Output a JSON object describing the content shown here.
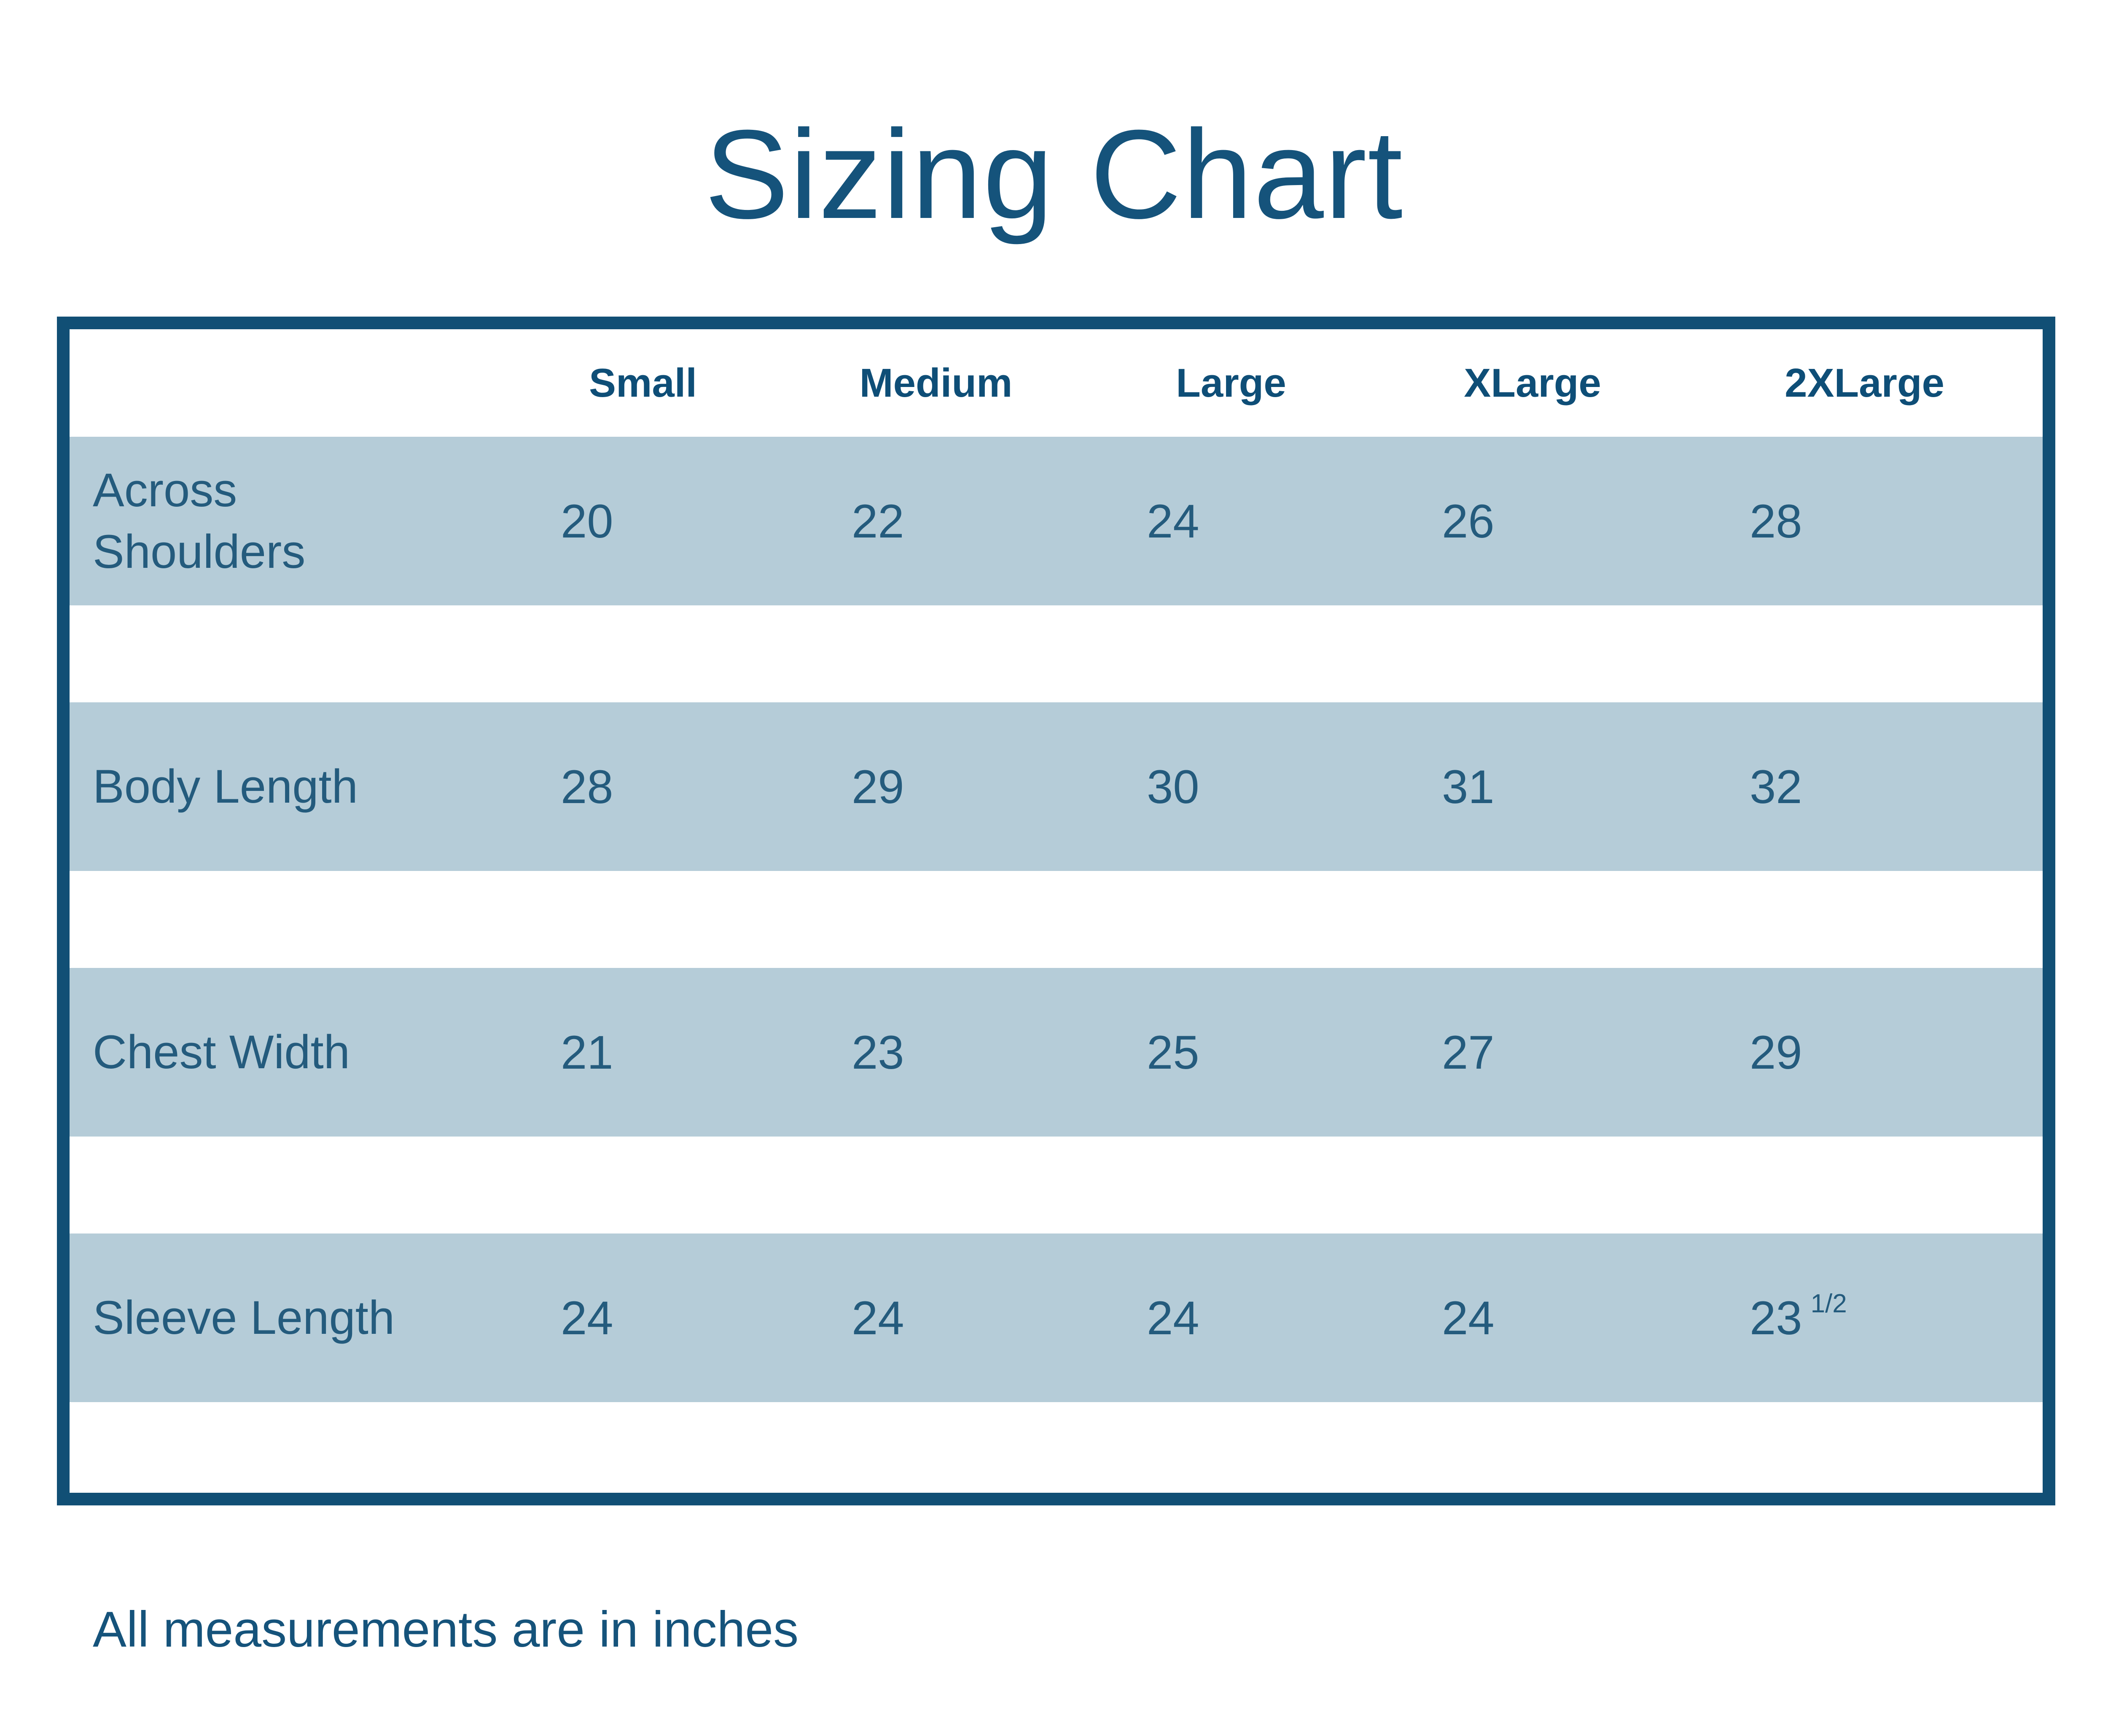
{
  "title": "Sizing Chart",
  "note": "All measurements are in inches",
  "chart_data": {
    "type": "table",
    "title": "Sizing Chart",
    "columns": [
      "Small",
      "Medium",
      "Large",
      "XLarge",
      "2XLarge"
    ],
    "rows": [
      {
        "label": "Across\nShoulders",
        "values": [
          "20",
          "22",
          "24",
          "26",
          "28"
        ]
      },
      {
        "label": "Body Length",
        "values": [
          "28",
          "29",
          "30",
          "31",
          "32"
        ]
      },
      {
        "label": "Chest Width",
        "values": [
          "21",
          "23",
          "25",
          "27",
          "29"
        ]
      },
      {
        "label": "Sleeve Length",
        "values": [
          "24",
          "24",
          "24",
          "24",
          "23 1/2"
        ]
      }
    ],
    "footnote": "All measurements are in inches",
    "units": "inches",
    "legend_position": "none",
    "grid": "off"
  },
  "colors": {
    "background": "#ffffff",
    "border": "#114f75",
    "title_text": "#15537b",
    "header_text": "#0e4e77",
    "body_text": "#245b7d",
    "row_stripe": "#b5ccd8"
  }
}
